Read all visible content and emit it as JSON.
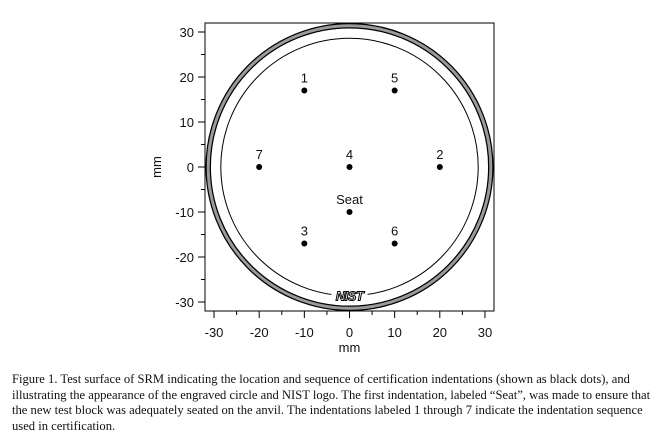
{
  "chart_data": {
    "type": "scatter",
    "xlabel": "mm",
    "ylabel": "mm",
    "xlim": [
      -32,
      32
    ],
    "ylim": [
      -32,
      32
    ],
    "xticks": [
      -30,
      -20,
      -10,
      0,
      10,
      20,
      30
    ],
    "yticks": [
      -30,
      -20,
      -10,
      0,
      10,
      20,
      30
    ],
    "grid": false,
    "points": [
      {
        "label": "1",
        "x": -10,
        "y": 17
      },
      {
        "label": "2",
        "x": 20,
        "y": 0
      },
      {
        "label": "3",
        "x": -10,
        "y": -17
      },
      {
        "label": "4",
        "x": 0,
        "y": 0
      },
      {
        "label": "5",
        "x": 10,
        "y": 17
      },
      {
        "label": "6",
        "x": 10,
        "y": -17
      },
      {
        "label": "7",
        "x": -20,
        "y": 0
      },
      {
        "label": "Seat",
        "x": 0,
        "y": -10
      }
    ],
    "circles": [
      {
        "name": "outer edge",
        "radius": 31.8,
        "color": "#555555"
      },
      {
        "name": "engraved circle",
        "radius": 28.5,
        "color": "#000000"
      }
    ],
    "logo": "NIST"
  },
  "caption": "Figure 1.  Test surface of SRM indicating the location and sequence of certification indentations (shown as black dots), and illustrating the appearance of the engraved circle and NIST logo.  The first indentation, labeled “Seat”, was made to ensure that the new test block was adequately seated on the anvil.  The indentations labeled 1 through 7 indicate the indentation sequence used in certification."
}
